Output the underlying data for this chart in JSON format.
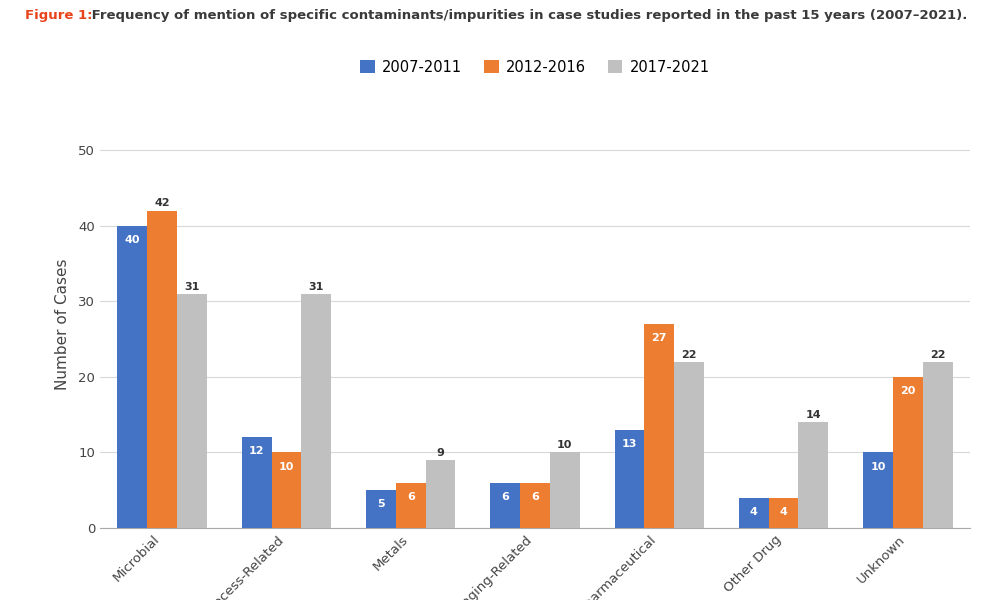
{
  "title_figure": "Figure 1:",
  "title_text": " Frequency of mention of specific contaminants/impurities in case studies reported in the past 15 years (2007–2021).",
  "categories": [
    "Microbial",
    "Process-Related",
    "Metals",
    "Packaging-Related",
    "Biopharmaceutical",
    "Other Drug",
    "Unknown"
  ],
  "series": {
    "2007-2011": [
      40,
      12,
      5,
      6,
      13,
      4,
      10
    ],
    "2012-2016": [
      42,
      10,
      6,
      6,
      27,
      4,
      20
    ],
    "2017-2021": [
      31,
      31,
      9,
      10,
      22,
      14,
      22
    ]
  },
  "colors": {
    "2007-2011": "#4472C4",
    "2012-2016": "#ED7D31",
    "2017-2021": "#C0C0C0"
  },
  "ylabel": "Number of Cases",
  "ylim": [
    0,
    54
  ],
  "yticks": [
    0,
    10,
    20,
    30,
    40,
    50
  ],
  "legend_labels": [
    "2007-2011",
    "2012-2016",
    "2017-2021"
  ],
  "bar_width": 0.24,
  "figure_title_color": "#E8431A",
  "title_text_color": "#3A3A3A",
  "background_color": "#FFFFFF",
  "grid_color": "#D8D8D8",
  "label_fontsize": 8,
  "axis_label_fontsize": 11,
  "tick_label_fontsize": 9.5,
  "legend_fontsize": 10.5
}
